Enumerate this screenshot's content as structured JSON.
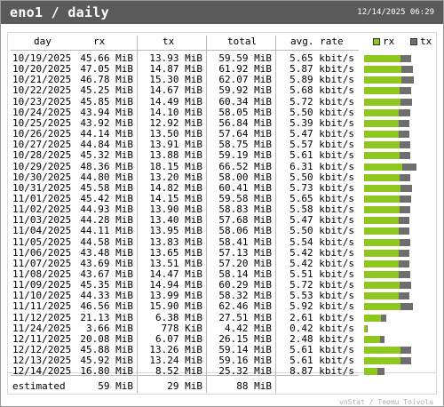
{
  "header": {
    "title": "eno1 / daily",
    "timestamp": "12/14/2025 06:29"
  },
  "columns": {
    "day": "day",
    "rx": "rx",
    "tx": "tx",
    "total": "total",
    "rate": "avg. rate"
  },
  "legend": {
    "rx": "rx",
    "tx": "tx"
  },
  "colors": {
    "rx": "#8ec81e",
    "tx": "#6e6e6e",
    "header": "#5a5a5a"
  },
  "rows": [
    {
      "day": "10/19/2025",
      "rx": "45.66 MiB",
      "tx": "13.93 MiB",
      "total": "59.59 MiB",
      "rate": "5.65 kbit/s",
      "rx_val": 45.66,
      "tx_val": 13.93
    },
    {
      "day": "10/20/2025",
      "rx": "47.05 MiB",
      "tx": "14.87 MiB",
      "total": "61.92 MiB",
      "rate": "5.87 kbit/s",
      "rx_val": 47.05,
      "tx_val": 14.87
    },
    {
      "day": "10/21/2025",
      "rx": "46.78 MiB",
      "tx": "15.30 MiB",
      "total": "62.07 MiB",
      "rate": "5.89 kbit/s",
      "rx_val": 46.78,
      "tx_val": 15.3
    },
    {
      "day": "10/22/2025",
      "rx": "45.25 MiB",
      "tx": "14.67 MiB",
      "total": "59.92 MiB",
      "rate": "5.68 kbit/s",
      "rx_val": 45.25,
      "tx_val": 14.67
    },
    {
      "day": "10/23/2025",
      "rx": "45.85 MiB",
      "tx": "14.49 MiB",
      "total": "60.34 MiB",
      "rate": "5.72 kbit/s",
      "rx_val": 45.85,
      "tx_val": 14.49
    },
    {
      "day": "10/24/2025",
      "rx": "43.94 MiB",
      "tx": "14.10 MiB",
      "total": "58.05 MiB",
      "rate": "5.50 kbit/s",
      "rx_val": 43.94,
      "tx_val": 14.1
    },
    {
      "day": "10/25/2025",
      "rx": "43.92 MiB",
      "tx": "12.92 MiB",
      "total": "56.84 MiB",
      "rate": "5.39 kbit/s",
      "rx_val": 43.92,
      "tx_val": 12.92
    },
    {
      "day": "10/26/2025",
      "rx": "44.14 MiB",
      "tx": "13.50 MiB",
      "total": "57.64 MiB",
      "rate": "5.47 kbit/s",
      "rx_val": 44.14,
      "tx_val": 13.5
    },
    {
      "day": "10/27/2025",
      "rx": "44.84 MiB",
      "tx": "13.91 MiB",
      "total": "58.75 MiB",
      "rate": "5.57 kbit/s",
      "rx_val": 44.84,
      "tx_val": 13.91
    },
    {
      "day": "10/28/2025",
      "rx": "45.32 MiB",
      "tx": "13.88 MiB",
      "total": "59.19 MiB",
      "rate": "5.61 kbit/s",
      "rx_val": 45.32,
      "tx_val": 13.88
    },
    {
      "day": "10/29/2025",
      "rx": "48.36 MiB",
      "tx": "18.15 MiB",
      "total": "66.52 MiB",
      "rate": "6.31 kbit/s",
      "rx_val": 48.36,
      "tx_val": 18.15
    },
    {
      "day": "10/30/2025",
      "rx": "44.80 MiB",
      "tx": "13.20 MiB",
      "total": "58.00 MiB",
      "rate": "5.50 kbit/s",
      "rx_val": 44.8,
      "tx_val": 13.2
    },
    {
      "day": "10/31/2025",
      "rx": "45.58 MiB",
      "tx": "14.82 MiB",
      "total": "60.41 MiB",
      "rate": "5.73 kbit/s",
      "rx_val": 45.58,
      "tx_val": 14.82
    },
    {
      "day": "11/01/2025",
      "rx": "45.42 MiB",
      "tx": "14.15 MiB",
      "total": "59.58 MiB",
      "rate": "5.65 kbit/s",
      "rx_val": 45.42,
      "tx_val": 14.15
    },
    {
      "day": "11/02/2025",
      "rx": "44.93 MiB",
      "tx": "13.90 MiB",
      "total": "58.83 MiB",
      "rate": "5.58 kbit/s",
      "rx_val": 44.93,
      "tx_val": 13.9
    },
    {
      "day": "11/03/2025",
      "rx": "44.28 MiB",
      "tx": "13.40 MiB",
      "total": "57.68 MiB",
      "rate": "5.47 kbit/s",
      "rx_val": 44.28,
      "tx_val": 13.4
    },
    {
      "day": "11/04/2025",
      "rx": "44.11 MiB",
      "tx": "13.95 MiB",
      "total": "58.06 MiB",
      "rate": "5.50 kbit/s",
      "rx_val": 44.11,
      "tx_val": 13.95
    },
    {
      "day": "11/05/2025",
      "rx": "44.58 MiB",
      "tx": "13.83 MiB",
      "total": "58.41 MiB",
      "rate": "5.54 kbit/s",
      "rx_val": 44.58,
      "tx_val": 13.83
    },
    {
      "day": "11/06/2025",
      "rx": "43.48 MiB",
      "tx": "13.65 MiB",
      "total": "57.13 MiB",
      "rate": "5.42 kbit/s",
      "rx_val": 43.48,
      "tx_val": 13.65
    },
    {
      "day": "11/07/2025",
      "rx": "43.69 MiB",
      "tx": "13.51 MiB",
      "total": "57.20 MiB",
      "rate": "5.42 kbit/s",
      "rx_val": 43.69,
      "tx_val": 13.51
    },
    {
      "day": "11/08/2025",
      "rx": "43.67 MiB",
      "tx": "14.47 MiB",
      "total": "58.14 MiB",
      "rate": "5.51 kbit/s",
      "rx_val": 43.67,
      "tx_val": 14.47
    },
    {
      "day": "11/09/2025",
      "rx": "45.35 MiB",
      "tx": "14.94 MiB",
      "total": "60.29 MiB",
      "rate": "5.72 kbit/s",
      "rx_val": 45.35,
      "tx_val": 14.94
    },
    {
      "day": "11/10/2025",
      "rx": "44.33 MiB",
      "tx": "13.99 MiB",
      "total": "58.32 MiB",
      "rate": "5.53 kbit/s",
      "rx_val": 44.33,
      "tx_val": 13.99
    },
    {
      "day": "11/11/2025",
      "rx": "46.56 MiB",
      "tx": "15.90 MiB",
      "total": "62.46 MiB",
      "rate": "5.92 kbit/s",
      "rx_val": 46.56,
      "tx_val": 15.9
    },
    {
      "day": "11/12/2025",
      "rx": "21.13 MiB",
      "tx": "6.38 MiB",
      "total": "27.51 MiB",
      "rate": "2.61 kbit/s",
      "rx_val": 21.13,
      "tx_val": 6.38
    },
    {
      "day": "11/24/2025",
      "rx": "3.66 MiB",
      "tx": "778 KiB",
      "total": "4.42 MiB",
      "rate": "0.42 kbit/s",
      "rx_val": 3.66,
      "tx_val": 0.76
    },
    {
      "day": "12/11/2025",
      "rx": "20.08 MiB",
      "tx": "6.07 MiB",
      "total": "26.15 MiB",
      "rate": "2.48 kbit/s",
      "rx_val": 20.08,
      "tx_val": 6.07
    },
    {
      "day": "12/12/2025",
      "rx": "45.88 MiB",
      "tx": "13.26 MiB",
      "total": "59.14 MiB",
      "rate": "5.61 kbit/s",
      "rx_val": 45.88,
      "tx_val": 13.26
    },
    {
      "day": "12/13/2025",
      "rx": "45.92 MiB",
      "tx": "13.24 MiB",
      "total": "59.16 MiB",
      "rate": "5.61 kbit/s",
      "rx_val": 45.92,
      "tx_val": 13.24
    },
    {
      "day": "12/14/2025",
      "rx": "16.80 MiB",
      "tx": "8.52 MiB",
      "total": "25.32 MiB",
      "rate": "8.87 kbit/s",
      "rx_val": 16.8,
      "tx_val": 8.52
    }
  ],
  "estimated": {
    "label": "estimated",
    "rx": "59 MiB",
    "tx": "29 MiB",
    "total": "88 MiB"
  },
  "footer": "vnStat / Teemu Toivola",
  "bar_scale_max": 66.52
}
